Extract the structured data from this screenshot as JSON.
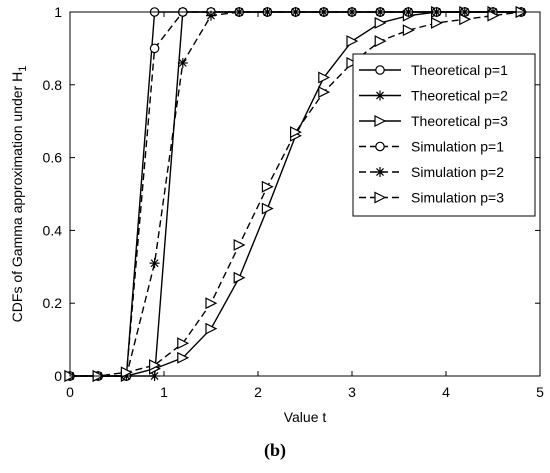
{
  "caption": "(b)",
  "chart_data": {
    "type": "line",
    "xlabel": "Value t",
    "ylabel_main": "CDFs of Gamma approximation under H",
    "ylabel_sub": "1",
    "xlim": [
      0,
      5
    ],
    "ylim": [
      0,
      1
    ],
    "xticks": [
      0,
      1,
      2,
      3,
      4,
      5
    ],
    "yticks": [
      0,
      0.2,
      0.4,
      0.6,
      0.8,
      1
    ],
    "grid": false,
    "legend_position": "top-right",
    "series": [
      {
        "name": "Theoretical p=1",
        "style": "solid",
        "marker": "circle",
        "x": [
          0,
          0.3,
          0.6,
          0.9,
          1.2,
          1.5,
          1.8,
          2.1,
          2.4,
          2.7,
          3.0,
          3.3,
          3.6,
          3.9,
          4.2,
          4.5,
          4.8
        ],
        "y": [
          0,
          0,
          0,
          1,
          1,
          1,
          1,
          1,
          1,
          1,
          1,
          1,
          1,
          1,
          1,
          1,
          1
        ]
      },
      {
        "name": "Theoretical p=2",
        "style": "solid",
        "marker": "star",
        "x": [
          0,
          0.3,
          0.6,
          0.9,
          1.2,
          1.5,
          1.8,
          2.1,
          2.4,
          2.7,
          3.0,
          3.3,
          3.6,
          3.9,
          4.2,
          4.5,
          4.8
        ],
        "y": [
          0,
          0,
          0,
          0,
          1,
          1,
          1,
          1,
          1,
          1,
          1,
          1,
          1,
          1,
          1,
          1,
          1
        ]
      },
      {
        "name": "Theoretical p=3",
        "style": "solid",
        "marker": "triangle-right",
        "x": [
          0,
          0.3,
          0.6,
          0.9,
          1.2,
          1.5,
          1.8,
          2.1,
          2.4,
          2.7,
          3.0,
          3.3,
          3.6,
          3.9,
          4.2,
          4.5,
          4.8
        ],
        "y": [
          0,
          0,
          0,
          0.02,
          0.05,
          0.13,
          0.27,
          0.46,
          0.66,
          0.82,
          0.92,
          0.97,
          0.99,
          1.0,
          1.0,
          1.0,
          1.0
        ]
      },
      {
        "name": "Simulation p=1",
        "style": "dashed",
        "marker": "circle",
        "x": [
          0,
          0.3,
          0.6,
          0.9,
          1.2,
          1.5,
          1.8,
          2.1,
          2.4,
          2.7,
          3.0,
          3.3,
          3.6,
          3.9,
          4.2,
          4.5,
          4.8
        ],
        "y": [
          0,
          0,
          0,
          0.9,
          1,
          1,
          1,
          1,
          1,
          1,
          1,
          1,
          1,
          1,
          1,
          1,
          1
        ]
      },
      {
        "name": "Simulation p=2",
        "style": "dashed",
        "marker": "star",
        "x": [
          0,
          0.3,
          0.6,
          0.9,
          1.2,
          1.5,
          1.8,
          2.1,
          2.4,
          2.7,
          3.0,
          3.3,
          3.6,
          3.9,
          4.2,
          4.5,
          4.8
        ],
        "y": [
          0,
          0,
          0,
          0.31,
          0.86,
          0.99,
          1,
          1,
          1,
          1,
          1,
          1,
          1,
          1,
          1,
          1,
          1
        ]
      },
      {
        "name": "Simulation p=3",
        "style": "dashed",
        "marker": "triangle-right",
        "x": [
          0,
          0.3,
          0.6,
          0.9,
          1.2,
          1.5,
          1.8,
          2.1,
          2.4,
          2.7,
          3.0,
          3.3,
          3.6,
          3.9,
          4.2,
          4.5,
          4.8
        ],
        "y": [
          0,
          0,
          0.01,
          0.03,
          0.09,
          0.2,
          0.36,
          0.52,
          0.67,
          0.78,
          0.86,
          0.92,
          0.95,
          0.97,
          0.98,
          0.99,
          1.0
        ]
      }
    ]
  }
}
